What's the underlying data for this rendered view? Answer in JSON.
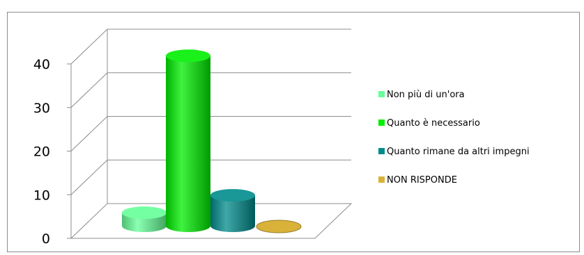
{
  "chart_data": {
    "type": "bar",
    "style": "3d-cylinder",
    "title": "",
    "xlabel": "",
    "ylabel": "",
    "ylim": [
      0,
      40
    ],
    "yticks": [
      0,
      10,
      20,
      30,
      40
    ],
    "grid": true,
    "legend_position": "right",
    "series": [
      {
        "name": "Non più di un'ora",
        "value": 3,
        "color": "#66ff99"
      },
      {
        "name": "Quanto è necessario",
        "value": 39,
        "color": "#00ee00"
      },
      {
        "name": "Quanto rimane da altri impegni",
        "value": 7,
        "color": "#008b8b"
      },
      {
        "name": "NON RISPONDE",
        "value": 0,
        "color": "#d9b23a"
      }
    ]
  }
}
